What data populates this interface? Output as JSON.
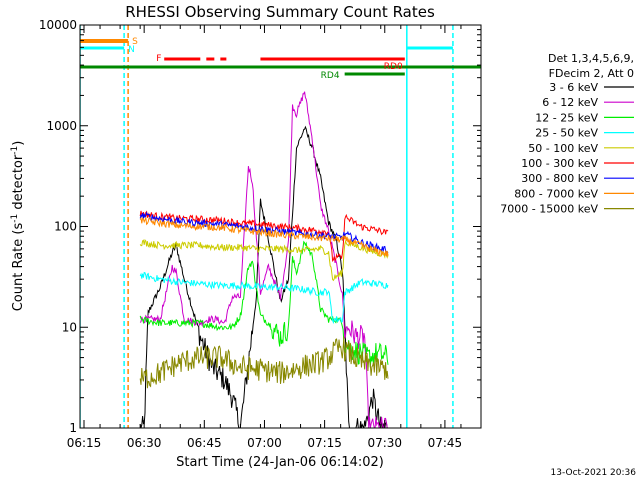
{
  "chart_data": {
    "type": "line",
    "title": "RHESSI Observing Summary Count Rates",
    "xlabel": "Start Time (24-Jan-06 06:14:02)",
    "ylabel_main": "Count Rate (s",
    "ylabel_sup": "-1",
    "ylabel_tail": " detector",
    "ylabel_close": ")",
    "y_scale": "log",
    "ylim": [
      1,
      10000
    ],
    "xlim_minutes": [
      0,
      100
    ],
    "x_ticks": [
      {
        "label": "06:15",
        "m": 1
      },
      {
        "label": "06:30",
        "m": 16
      },
      {
        "label": "06:45",
        "m": 31
      },
      {
        "label": "07:00",
        "m": 46
      },
      {
        "label": "07:15",
        "m": 61
      },
      {
        "label": "07:30",
        "m": 76
      },
      {
        "label": "07:45",
        "m": 91
      }
    ],
    "y_ticks": [
      {
        "label": "1",
        "v": 1
      },
      {
        "label": "10",
        "v": 10
      },
      {
        "label": "100",
        "v": 100
      },
      {
        "label": "1000",
        "v": 1000
      },
      {
        "label": "10000",
        "v": 10000
      }
    ],
    "legend_header": [
      "Det 1,3,4,5,6,9,",
      "FDecim 2, Att 0"
    ],
    "series": [
      {
        "name": "3 - 6 keV",
        "color": "#000000",
        "key": [
          [
            15,
            1
          ],
          [
            16,
            1
          ],
          [
            17,
            14
          ],
          [
            20,
            25
          ],
          [
            23,
            55
          ],
          [
            24,
            65
          ],
          [
            26,
            30
          ],
          [
            30,
            8
          ],
          [
            33,
            4
          ],
          [
            36,
            3
          ],
          [
            38,
            2
          ],
          [
            40,
            1
          ],
          [
            44,
            20
          ],
          [
            45,
            180
          ],
          [
            47,
            75
          ],
          [
            50,
            18
          ],
          [
            52,
            30
          ],
          [
            54,
            600
          ],
          [
            56,
            950
          ],
          [
            58,
            600
          ],
          [
            60,
            300
          ],
          [
            62,
            110
          ],
          [
            64,
            70
          ],
          [
            65.5,
            35
          ],
          [
            67,
            1
          ],
          [
            69,
            1
          ],
          [
            71,
            1
          ],
          [
            73,
            2
          ],
          [
            75,
            1
          ],
          [
            77,
            1
          ]
        ]
      },
      {
        "name": "6 - 12 keV",
        "color": "#cc00cc",
        "key": [
          [
            15,
            12
          ],
          [
            20,
            12
          ],
          [
            23,
            40
          ],
          [
            24,
            35
          ],
          [
            26,
            12
          ],
          [
            30,
            11
          ],
          [
            32,
            12
          ],
          [
            34,
            12
          ],
          [
            36,
            11
          ],
          [
            38,
            20
          ],
          [
            40,
            20
          ],
          [
            42,
            400
          ],
          [
            43,
            280
          ],
          [
            45,
            22
          ],
          [
            47,
            40
          ],
          [
            49,
            25
          ],
          [
            50,
            20
          ],
          [
            52,
            70
          ],
          [
            53,
            1600
          ],
          [
            54,
            1300
          ],
          [
            55,
            1700
          ],
          [
            56,
            2200
          ],
          [
            58,
            700
          ],
          [
            60,
            160
          ],
          [
            62,
            90
          ],
          [
            64,
            40
          ],
          [
            65.5,
            20
          ],
          [
            66,
            9
          ],
          [
            67,
            10
          ],
          [
            69,
            8
          ],
          [
            71,
            8
          ],
          [
            72,
            1
          ],
          [
            77,
            1
          ]
        ]
      },
      {
        "name": "12 - 25 keV",
        "color": "#00ee00",
        "key": [
          [
            15,
            12
          ],
          [
            20,
            11
          ],
          [
            25,
            11
          ],
          [
            30,
            11
          ],
          [
            35,
            10
          ],
          [
            38,
            10
          ],
          [
            40,
            13
          ],
          [
            42,
            40
          ],
          [
            43,
            45
          ],
          [
            45,
            13
          ],
          [
            47,
            11
          ],
          [
            50,
            8
          ],
          [
            52,
            10
          ],
          [
            53,
            48
          ],
          [
            54,
            35
          ],
          [
            56,
            70
          ],
          [
            58,
            50
          ],
          [
            60,
            15
          ],
          [
            62,
            12
          ],
          [
            64,
            12
          ],
          [
            65.5,
            11
          ],
          [
            66,
            7
          ],
          [
            68,
            6
          ],
          [
            70,
            5.5
          ],
          [
            72,
            5
          ],
          [
            74,
            5.5
          ],
          [
            77,
            5
          ]
        ]
      },
      {
        "name": "25 - 50 keV",
        "color": "#00ffff",
        "key": [
          [
            15,
            33
          ],
          [
            20,
            30
          ],
          [
            25,
            28
          ],
          [
            30,
            27
          ],
          [
            35,
            26
          ],
          [
            40,
            26
          ],
          [
            45,
            25
          ],
          [
            50,
            25
          ],
          [
            55,
            24
          ],
          [
            60,
            22
          ],
          [
            62,
            23
          ],
          [
            63,
            12
          ],
          [
            65.5,
            12
          ],
          [
            66,
            22
          ],
          [
            70,
            28
          ],
          [
            74,
            27
          ],
          [
            77,
            26
          ]
        ]
      },
      {
        "name": "50 - 100 keV",
        "color": "#cccc00",
        "key": [
          [
            15,
            70
          ],
          [
            20,
            65
          ],
          [
            25,
            65
          ],
          [
            30,
            65
          ],
          [
            35,
            62
          ],
          [
            40,
            62
          ],
          [
            45,
            60
          ],
          [
            50,
            60
          ],
          [
            55,
            58
          ],
          [
            60,
            60
          ],
          [
            62,
            55
          ],
          [
            63,
            30
          ],
          [
            65.5,
            35
          ],
          [
            66,
            70
          ],
          [
            70,
            62
          ],
          [
            74,
            55
          ],
          [
            77,
            52
          ]
        ]
      },
      {
        "name": "100 - 300 keV",
        "color": "#ff0000",
        "key": [
          [
            15,
            135
          ],
          [
            20,
            125
          ],
          [
            25,
            120
          ],
          [
            30,
            118
          ],
          [
            35,
            115
          ],
          [
            40,
            108
          ],
          [
            45,
            105
          ],
          [
            50,
            100
          ],
          [
            55,
            95
          ],
          [
            60,
            90
          ],
          [
            62,
            88
          ],
          [
            63,
            48
          ],
          [
            65.5,
            50
          ],
          [
            66,
            125
          ],
          [
            70,
            100
          ],
          [
            74,
            92
          ],
          [
            77,
            85
          ]
        ]
      },
      {
        "name": "300 - 800 keV",
        "color": "#0000ff",
        "key": [
          [
            15,
            130
          ],
          [
            20,
            120
          ],
          [
            25,
            112
          ],
          [
            30,
            108
          ],
          [
            35,
            105
          ],
          [
            40,
            100
          ],
          [
            45,
            95
          ],
          [
            50,
            90
          ],
          [
            55,
            85
          ],
          [
            60,
            82
          ],
          [
            62,
            80
          ],
          [
            65.5,
            78
          ],
          [
            66,
            85
          ],
          [
            70,
            70
          ],
          [
            74,
            62
          ],
          [
            77,
            58
          ]
        ]
      },
      {
        "name": "800 - 7000 keV",
        "color": "#ff8800",
        "key": [
          [
            15,
            115
          ],
          [
            20,
            108
          ],
          [
            25,
            102
          ],
          [
            30,
            100
          ],
          [
            35,
            98
          ],
          [
            40,
            92
          ],
          [
            45,
            88
          ],
          [
            50,
            83
          ],
          [
            55,
            80
          ],
          [
            60,
            77
          ],
          [
            62,
            76
          ],
          [
            65.5,
            74
          ],
          [
            66,
            75
          ],
          [
            70,
            65
          ],
          [
            74,
            57
          ],
          [
            77,
            53
          ]
        ]
      },
      {
        "name": "7000 - 15000 keV",
        "color": "#888800",
        "key": [
          [
            15,
            3
          ],
          [
            20,
            3.5
          ],
          [
            25,
            4.5
          ],
          [
            30,
            5
          ],
          [
            35,
            5
          ],
          [
            40,
            4
          ],
          [
            45,
            3.8
          ],
          [
            50,
            3.5
          ],
          [
            55,
            4
          ],
          [
            60,
            4.5
          ],
          [
            62,
            5
          ],
          [
            64,
            6
          ],
          [
            65.5,
            6.5
          ],
          [
            66,
            6
          ],
          [
            70,
            4.5
          ],
          [
            74,
            4
          ],
          [
            77,
            3.8
          ]
        ]
      }
    ],
    "flags": [
      {
        "name": "S",
        "color": "#ff8800"
      },
      {
        "name": "N",
        "color": "#00ffff"
      },
      {
        "name": "F",
        "color": "#ff0000"
      },
      {
        "name": "RD0",
        "color": "#ff0000"
      },
      {
        "name": "RD4",
        "color": "#008800"
      }
    ],
    "flag_spans": {
      "S": [
        [
          0,
          12
        ]
      ],
      "N": [
        [
          0,
          11
        ],
        [
          81.5,
          93
        ]
      ],
      "F": [
        [
          21,
          30
        ],
        [
          31.5,
          33.5
        ],
        [
          35,
          36.5
        ],
        [
          45,
          81
        ]
      ],
      "RD0": [
        [
          0,
          100
        ]
      ],
      "RD4": [
        [
          66,
          81
        ]
      ]
    },
    "vlines": [
      {
        "m": 0,
        "color": "#00ffff",
        "style": "solid"
      },
      {
        "m": 11,
        "color": "#00ffff",
        "style": "dash"
      },
      {
        "m": 12,
        "color": "#ff8800",
        "style": "dash"
      },
      {
        "m": 81.5,
        "color": "#00ffff",
        "style": "solid"
      },
      {
        "m": 93,
        "color": "#00ffff",
        "style": "dash"
      }
    ]
  },
  "footer": {
    "timestamp": "13-Oct-2021 20:36"
  }
}
